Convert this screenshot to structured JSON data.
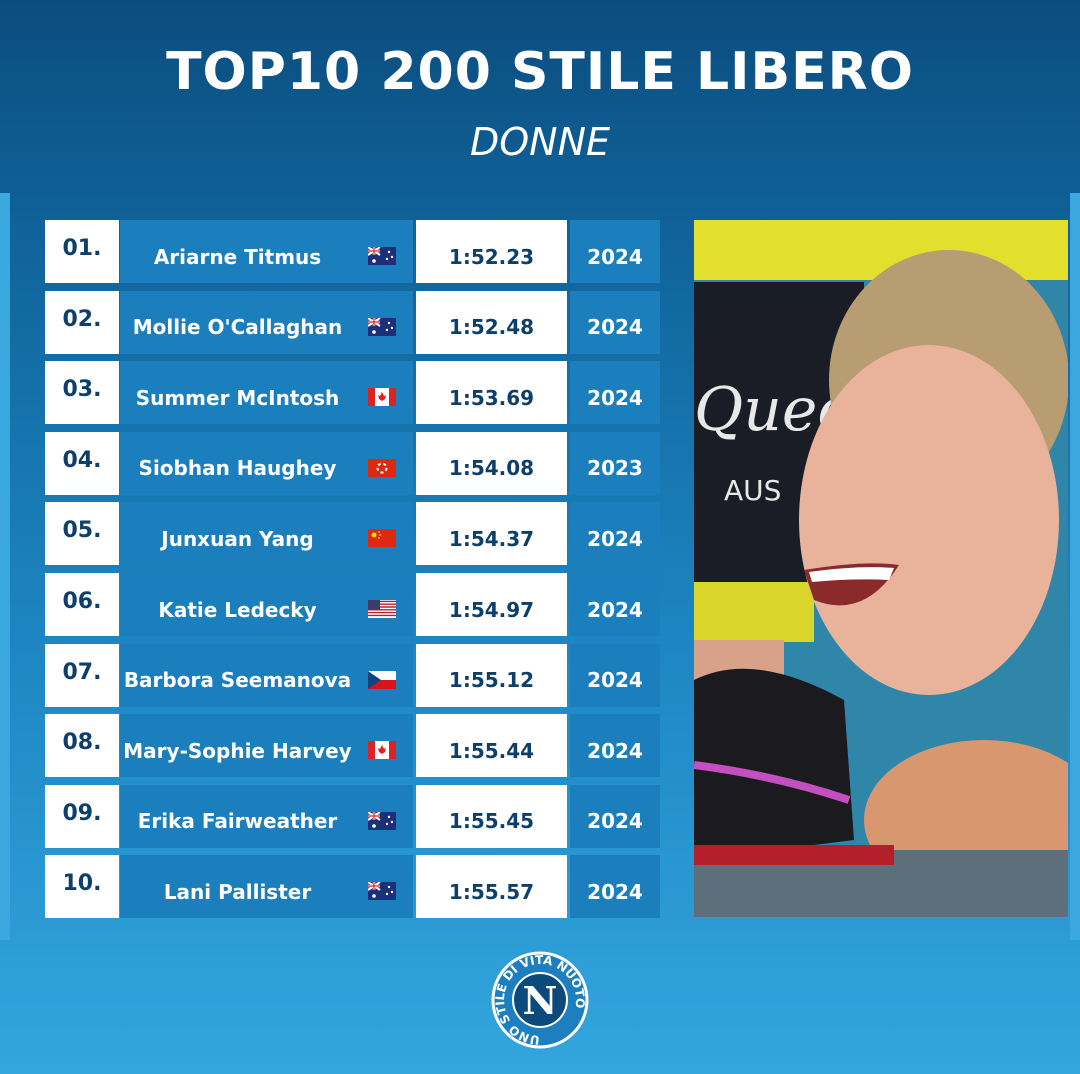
{
  "header": {
    "title": "TOP10 200 STILE LIBERO",
    "subtitle": "DONNE"
  },
  "table": {
    "rows": [
      [
        "01.",
        "Ariarne Titmus",
        "1:52.23",
        "2024"
      ],
      [
        "02.",
        "Mollie O'Callaghan",
        "1:52.48",
        "2024"
      ],
      [
        "03.",
        "Summer McIntosh",
        "1:53.69",
        "2024"
      ],
      [
        "04.",
        "Siobhan Haughey",
        "1:54.08",
        "2023"
      ],
      [
        "05.",
        "Junxuan Yang",
        "1:54.37",
        "2024"
      ],
      [
        "06.",
        "Katie Ledecky",
        "1:54.97",
        "2024"
      ],
      [
        "07.",
        "Barbora Seemanova",
        "1:55.12",
        "2024"
      ],
      [
        "08.",
        "Mary-Sophie Harvey",
        "1:55.44",
        "2024"
      ],
      [
        "09.",
        "Erika Fairweather",
        "1:55.45",
        "2024"
      ],
      [
        "10.",
        "Lani Pallister",
        "1:55.57",
        "2024"
      ]
    ]
  },
  "logo": {
    "letter": "N",
    "text": "UNO STILE DI VITA NUOTO"
  }
}
